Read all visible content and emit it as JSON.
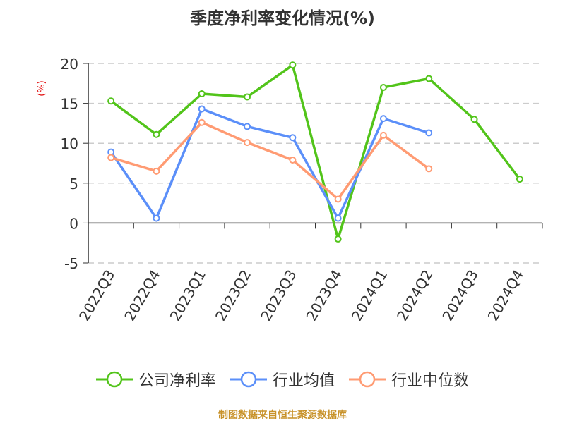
{
  "title": "季度净利率变化情况(%)",
  "footer": "制图数据来自恒生聚源数据库",
  "chart_data": {
    "type": "line",
    "title": "季度净利率变化情况(%)",
    "xlabel": "",
    "ylabel": "(%)",
    "ylim": [
      -5,
      20
    ],
    "yticks": [
      -5,
      0,
      5,
      10,
      15,
      20
    ],
    "grid": "horizontal dashed",
    "legend_position": "bottom",
    "categories": [
      "2022Q3",
      "2022Q4",
      "2023Q1",
      "2023Q2",
      "2023Q3",
      "2023Q4",
      "2024Q1",
      "2024Q2",
      "2024Q3",
      "2024Q4"
    ],
    "series": [
      {
        "name": "公司净利率",
        "color": "#52c41a",
        "values": [
          15.3,
          11.1,
          16.2,
          15.8,
          19.8,
          -2.0,
          17.0,
          18.1,
          13.0,
          5.5
        ]
      },
      {
        "name": "行业均值",
        "color": "#5b8ff9",
        "values": [
          8.9,
          0.6,
          14.3,
          12.1,
          10.7,
          0.6,
          13.1,
          11.3,
          null,
          null
        ]
      },
      {
        "name": "行业中位数",
        "color": "#ff9b73",
        "values": [
          8.2,
          6.5,
          12.6,
          10.1,
          7.9,
          3.0,
          11.0,
          6.8,
          null,
          null
        ]
      }
    ]
  }
}
